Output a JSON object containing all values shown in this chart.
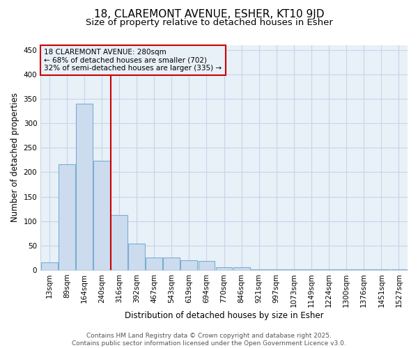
{
  "title": "18, CLAREMONT AVENUE, ESHER, KT10 9JD",
  "subtitle": "Size of property relative to detached houses in Esher",
  "xlabel": "Distribution of detached houses by size in Esher",
  "ylabel": "Number of detached properties",
  "categories": [
    "13sqm",
    "89sqm",
    "164sqm",
    "240sqm",
    "316sqm",
    "392sqm",
    "467sqm",
    "543sqm",
    "619sqm",
    "694sqm",
    "770sqm",
    "846sqm",
    "921sqm",
    "997sqm",
    "1073sqm",
    "1149sqm",
    "1224sqm",
    "1300sqm",
    "1376sqm",
    "1451sqm",
    "1527sqm"
  ],
  "values": [
    15,
    217,
    340,
    224,
    113,
    54,
    26,
    25,
    19,
    18,
    5,
    5,
    1,
    1,
    1,
    1,
    1,
    1,
    1,
    1,
    1
  ],
  "bar_color": "#ccdcee",
  "bar_edge_color": "#7aadd4",
  "red_line_color": "#cc0000",
  "annotation_line1": "18 CLAREMONT AVENUE: 280sqm",
  "annotation_line2": "← 68% of detached houses are smaller (702)",
  "annotation_line3": "32% of semi-detached houses are larger (335) →",
  "annotation_box_color": "#cc0000",
  "ylim": [
    0,
    460
  ],
  "yticks": [
    0,
    50,
    100,
    150,
    200,
    250,
    300,
    350,
    400,
    450
  ],
  "grid_color": "#c5d5e8",
  "background_color": "#ffffff",
  "plot_bg_color": "#e8f0f8",
  "footer_text": "Contains HM Land Registry data © Crown copyright and database right 2025.\nContains public sector information licensed under the Open Government Licence v3.0.",
  "title_fontsize": 11,
  "subtitle_fontsize": 9.5,
  "axis_label_fontsize": 8.5,
  "tick_fontsize": 7.5,
  "annotation_fontsize": 7.5,
  "footer_fontsize": 6.5
}
